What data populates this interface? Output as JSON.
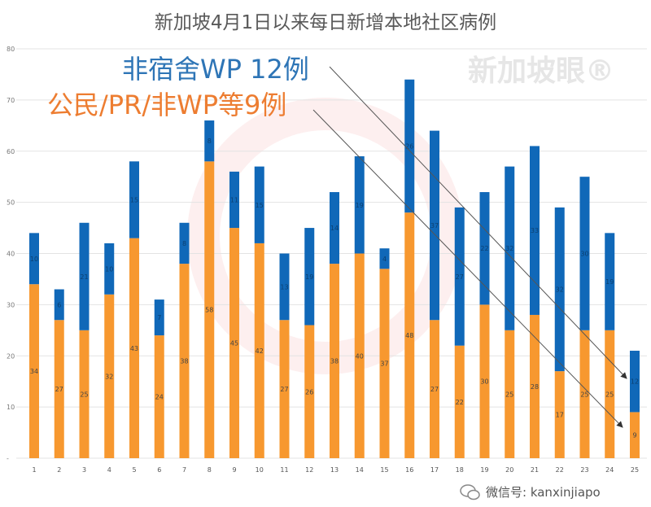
{
  "chart_data": {
    "type": "bar",
    "stacked": true,
    "title": "新加坡4月1日以来每日新增本地社区病例",
    "xlabel": "",
    "ylabel": "",
    "ylim": [
      0,
      80
    ],
    "yticks": [
      "-",
      "10",
      "20",
      "30",
      "40",
      "50",
      "60",
      "70",
      "80"
    ],
    "grid": true,
    "categories": [
      "1",
      "2",
      "3",
      "4",
      "5",
      "6",
      "7",
      "8",
      "9",
      "10",
      "11",
      "12",
      "13",
      "14",
      "15",
      "16",
      "17",
      "18",
      "19",
      "20",
      "21",
      "22",
      "23",
      "24",
      "25"
    ],
    "series": [
      {
        "color": "#f7982f",
        "values": [
          34,
          27,
          25,
          32,
          43,
          24,
          38,
          58,
          45,
          42,
          27,
          26,
          38,
          40,
          37,
          48,
          27,
          22,
          30,
          25,
          28,
          17,
          25,
          25,
          9
        ]
      },
      {
        "color": "#1068b8",
        "values": [
          10,
          6,
          21,
          10,
          15,
          7,
          8,
          8,
          11,
          15,
          13,
          19,
          14,
          19,
          4,
          26,
          37,
          27,
          22,
          32,
          33,
          32,
          30,
          19,
          12
        ]
      }
    ],
    "annotations": [
      {
        "text": "非宿舍WP 12例",
        "color": "#2e75b6"
      },
      {
        "text": "公民/PR/非WP等9例",
        "color": "#ed7d31"
      }
    ]
  },
  "watermark": "新加坡眼®",
  "footer": {
    "text": "微信号: kanxinjiapo",
    "icon": "wechat-icon"
  }
}
